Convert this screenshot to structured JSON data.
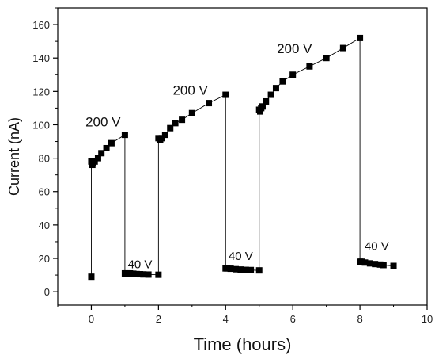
{
  "chart_data": {
    "type": "line",
    "title": "",
    "xlabel": "Time (hours)",
    "ylabel": "Current (nA)",
    "xlim": [
      -1,
      10
    ],
    "ylim": [
      -8,
      170
    ],
    "x_ticks": [
      0,
      2,
      4,
      6,
      8,
      10
    ],
    "y_ticks": [
      0,
      20,
      40,
      60,
      80,
      100,
      120,
      140,
      160
    ],
    "grid": false,
    "legend": "none",
    "series_color": "#000000",
    "marker": "square",
    "series": [
      {
        "name": "",
        "points": [
          [
            0,
            9
          ],
          [
            0,
            78
          ],
          [
            0.03,
            76
          ],
          [
            0.06,
            77
          ],
          [
            0.1,
            78
          ],
          [
            0.2,
            80
          ],
          [
            0.3,
            83
          ],
          [
            0.45,
            86
          ],
          [
            0.6,
            89
          ],
          [
            1.0,
            94
          ],
          [
            1.0,
            11
          ],
          [
            1.05,
            11
          ],
          [
            1.15,
            11
          ],
          [
            1.25,
            10.8
          ],
          [
            1.35,
            10.6
          ],
          [
            1.45,
            10.5
          ],
          [
            1.55,
            10.4
          ],
          [
            1.7,
            10.3
          ],
          [
            2.0,
            10.2
          ],
          [
            2.0,
            92
          ],
          [
            2.05,
            91
          ],
          [
            2.1,
            92
          ],
          [
            2.2,
            94
          ],
          [
            2.35,
            98
          ],
          [
            2.5,
            101
          ],
          [
            2.7,
            103
          ],
          [
            3.0,
            107
          ],
          [
            3.5,
            113
          ],
          [
            4.0,
            118
          ],
          [
            4.0,
            14
          ],
          [
            4.05,
            14
          ],
          [
            4.15,
            13.8
          ],
          [
            4.3,
            13.5
          ],
          [
            4.45,
            13.3
          ],
          [
            4.6,
            13.1
          ],
          [
            4.75,
            13
          ],
          [
            5.0,
            12.8
          ],
          [
            5.0,
            109
          ],
          [
            5.03,
            108
          ],
          [
            5.06,
            110
          ],
          [
            5.1,
            111
          ],
          [
            5.2,
            114
          ],
          [
            5.35,
            118
          ],
          [
            5.5,
            122
          ],
          [
            5.7,
            126
          ],
          [
            6.0,
            130
          ],
          [
            6.5,
            135
          ],
          [
            7.0,
            140
          ],
          [
            7.5,
            146
          ],
          [
            8.0,
            152
          ],
          [
            8.0,
            18
          ],
          [
            8.05,
            18
          ],
          [
            8.15,
            17.5
          ],
          [
            8.3,
            17
          ],
          [
            8.45,
            16.6
          ],
          [
            8.6,
            16.3
          ],
          [
            8.7,
            16
          ],
          [
            9.0,
            15.5
          ]
        ]
      }
    ],
    "annotations": [
      {
        "text": "200 V",
        "x": 0.35,
        "y": 99
      },
      {
        "text": "40 V",
        "x": 1.45,
        "y": 14
      },
      {
        "text": "200 V",
        "x": 2.95,
        "y": 118
      },
      {
        "text": "40 V",
        "x": 4.45,
        "y": 19
      },
      {
        "text": "200 V",
        "x": 6.05,
        "y": 143
      },
      {
        "text": "40 V",
        "x": 8.5,
        "y": 25
      }
    ]
  }
}
